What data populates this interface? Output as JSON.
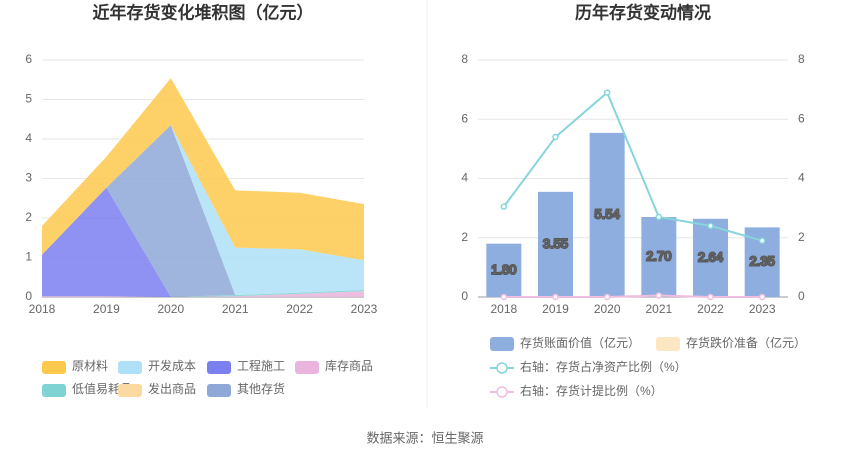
{
  "chart_data": [
    {
      "type": "stacked-area",
      "title": "近年存货变化堆积图（亿元）",
      "categories": [
        "2018",
        "2019",
        "2020",
        "2021",
        "2022",
        "2023"
      ],
      "ylim": [
        0,
        6
      ],
      "yticks": [
        0,
        1,
        2,
        3,
        4,
        5,
        6
      ],
      "grid": true,
      "legend": "bottom",
      "series": [
        {
          "name": "库存商品",
          "color": "#e9b4dd",
          "values": [
            0.02,
            0.02,
            0,
            0.02,
            0.08,
            0.15
          ]
        },
        {
          "name": "低值易耗品",
          "color": "#7fd3d3",
          "values": [
            0,
            0,
            0,
            0.03,
            0.03,
            0.03
          ]
        },
        {
          "name": "工程施工",
          "color": "#7b7ff0",
          "values": [
            1.05,
            2.75,
            0,
            0,
            0,
            0
          ]
        },
        {
          "name": "其他存货",
          "color": "#8fa8d8",
          "values": [
            0,
            0,
            4.35,
            0,
            0,
            0
          ]
        },
        {
          "name": "开发成本",
          "color": "#aee0f7",
          "values": [
            0,
            0,
            0,
            1.2,
            1.1,
            0.75
          ]
        },
        {
          "name": "发出商品",
          "color": "#fcd9a0",
          "values": [
            0,
            0,
            0,
            0,
            0,
            0
          ]
        },
        {
          "name": "原材料",
          "color": "#fdc94c",
          "values": [
            0.73,
            0.78,
            1.19,
            1.45,
            1.43,
            1.42
          ]
        }
      ],
      "legend_order": [
        6,
        4,
        2,
        0,
        1,
        5,
        3
      ]
    },
    {
      "type": "bar-line",
      "title": "历年存货变动情况",
      "categories": [
        "2018",
        "2019",
        "2020",
        "2021",
        "2022",
        "2023"
      ],
      "ylim": [
        0,
        8
      ],
      "yticks": [
        0,
        2,
        4,
        6,
        8
      ],
      "y2lim": [
        0,
        8
      ],
      "y2ticks": [
        0,
        2,
        4,
        6,
        8
      ],
      "grid": true,
      "legend": "bottom",
      "series": [
        {
          "name": "存货账面价值（亿元）",
          "color": "#8eaee0",
          "kind": "bar",
          "values": [
            1.8,
            3.55,
            5.54,
            2.7,
            2.64,
            2.35
          ],
          "value_labels": [
            "1.80",
            "3.55",
            "5.54",
            "2.70",
            "2.64",
            "2.35"
          ]
        },
        {
          "name": "存货跌价准备（亿元）",
          "color": "#fde6c2",
          "kind": "bar",
          "values": [
            0,
            0,
            0,
            0,
            0,
            0
          ]
        },
        {
          "name": "右轴：存货占净资产比例（%）",
          "color": "#86d5dc",
          "kind": "line",
          "axis": "y2",
          "values": [
            3.05,
            5.4,
            6.9,
            2.7,
            2.4,
            1.9
          ]
        },
        {
          "name": "右轴：存货计提比例（%）",
          "color": "#f0bde0",
          "kind": "line",
          "axis": "y2",
          "values": [
            0,
            0,
            0,
            0.05,
            0,
            0
          ]
        }
      ]
    }
  ],
  "footer": "数据来源：恒生聚源"
}
